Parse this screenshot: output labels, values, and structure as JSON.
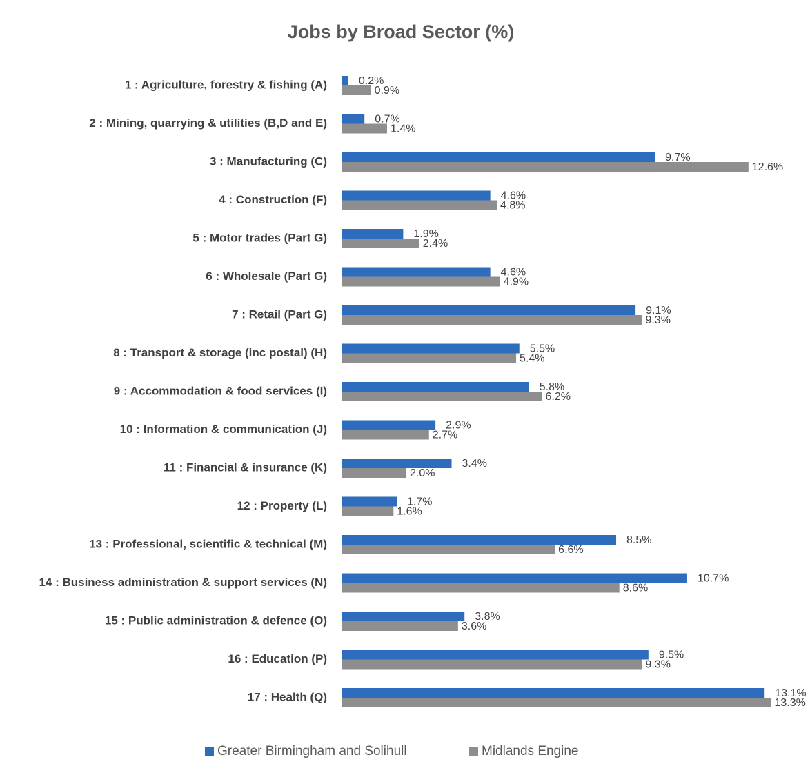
{
  "chart_data": {
    "type": "bar",
    "orientation": "horizontal",
    "title": "Jobs by Broad Sector (%)",
    "categories": [
      "1 : Agriculture, forestry & fishing (A)",
      "2 : Mining, quarrying & utilities (B,D and E)",
      "3 : Manufacturing (C)",
      "4 : Construction (F)",
      "5 : Motor trades (Part G)",
      "6 : Wholesale (Part G)",
      "7 : Retail (Part G)",
      "8 : Transport & storage (inc postal) (H)",
      "9 : Accommodation & food services (I)",
      "10 : Information & communication (J)",
      "11 : Financial & insurance (K)",
      "12 : Property (L)",
      "13 : Professional, scientific & technical (M)",
      "14 : Business administration & support services (N)",
      "15 : Public administration & defence (O)",
      "16 : Education (P)",
      "17 : Health (Q)"
    ],
    "series": [
      {
        "name": "Greater Birmingham and Solihull",
        "color": "#2e6dbd",
        "values": [
          0.2,
          0.7,
          9.7,
          4.6,
          1.9,
          4.6,
          9.1,
          5.5,
          5.8,
          2.9,
          3.4,
          1.7,
          8.5,
          10.7,
          3.8,
          9.5,
          13.1
        ],
        "value_labels": [
          "0.2%",
          "0.7%",
          "9.7%",
          "4.6%",
          "1.9%",
          "4.6%",
          "9.1%",
          "5.5%",
          "5.8%",
          "2.9%",
          "3.4%",
          "1.7%",
          "8.5%",
          "10.7%",
          "3.8%",
          "9.5%",
          "13.1%"
        ]
      },
      {
        "name": "Midlands Engine",
        "color": "#8e8e8e",
        "values": [
          0.9,
          1.4,
          12.6,
          4.8,
          2.4,
          4.9,
          9.3,
          5.4,
          6.2,
          2.7,
          2.0,
          1.6,
          6.6,
          8.6,
          3.6,
          9.3,
          13.3
        ],
        "value_labels": [
          "0.9%",
          "1.4%",
          "12.6%",
          "4.8%",
          "2.4%",
          "4.9%",
          "9.3%",
          "5.4%",
          "6.2%",
          "2.7%",
          "2.0%",
          "1.6%",
          "6.6%",
          "8.6%",
          "3.6%",
          "9.3%",
          "13.3%"
        ]
      }
    ],
    "xlim": [
      0,
      14
    ],
    "legend": "bottom"
  }
}
